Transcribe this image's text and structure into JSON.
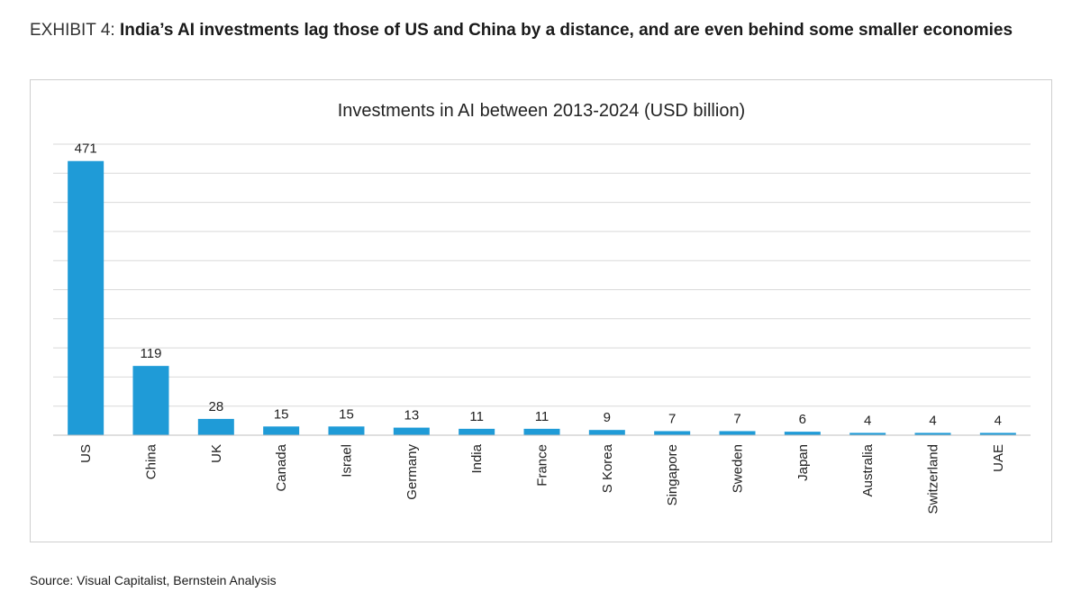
{
  "exhibit": {
    "label": "EXHIBIT 4: ",
    "headline": "India’s AI investments lag those of US and China by a distance, and are even behind some smaller economies"
  },
  "source": "Source: Visual Capitalist, Bernstein Analysis",
  "colors": {
    "bar": "#1f9bd7",
    "grid": "#d9d9d9",
    "axis": "#bfbfbf"
  },
  "chart_data": {
    "type": "bar",
    "title": "Investments in AI between 2013-2024 (USD billion)",
    "xlabel": "",
    "ylabel": "",
    "categories": [
      "US",
      "China",
      "UK",
      "Canada",
      "Israel",
      "Germany",
      "India",
      "France",
      "S Korea",
      "Singapore",
      "Sweden",
      "Japan",
      "Australia",
      "Switzerland",
      "UAE"
    ],
    "values": [
      471,
      119,
      28,
      15,
      15,
      13,
      11,
      11,
      9,
      7,
      7,
      6,
      4,
      4,
      4
    ],
    "ylim": [
      0,
      500
    ],
    "grid": true,
    "legend": "none",
    "data_labels": true
  }
}
